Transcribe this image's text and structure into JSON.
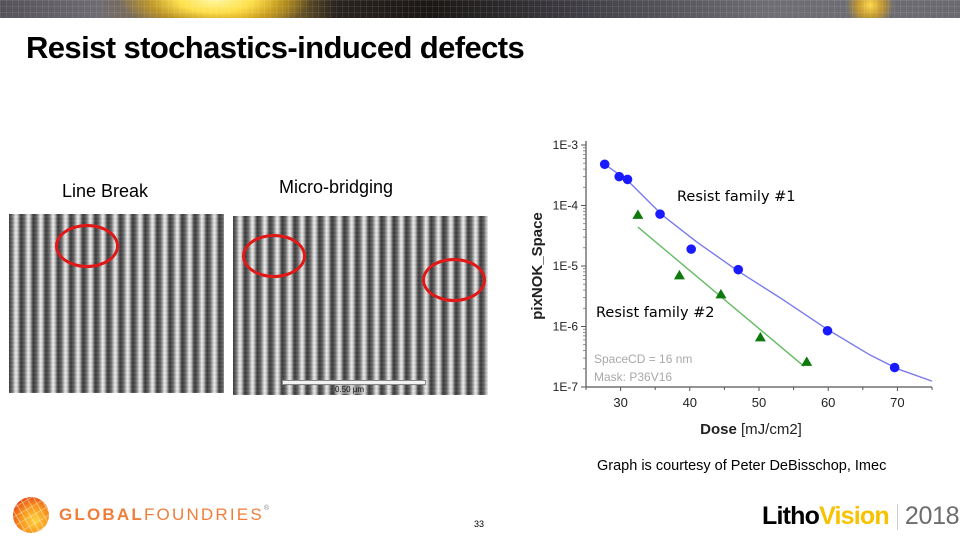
{
  "slide": {
    "title": "Resist stochastics-induced defects",
    "page_number": "33"
  },
  "images": {
    "left": {
      "label": "Line Break"
    },
    "right": {
      "label": "Micro-bridging",
      "scale_bar": "0.50 µm"
    }
  },
  "credit": "Graph is courtesy of Peter DeBisschop, Imec",
  "footer": {
    "company": {
      "bold": "GLOBAL",
      "light": "FOUNDRIES",
      "reg": "®"
    },
    "event": {
      "litho": "Litho",
      "vision": "Vision",
      "year": "2018"
    }
  },
  "colors": {
    "series1": "#1a1aff",
    "series1_fit": "#7a7af0",
    "series2": "#0e7a0e",
    "series2_fit": "#66bb66",
    "annotation": "#a8a8a8",
    "defect_circle": "#e01818",
    "brand_orange": "#f07e3a",
    "brand_yellow": "#f7c200"
  },
  "chart_data": {
    "type": "scatter",
    "title": "",
    "xlabel": "Dose",
    "xlabel_unit": "[mJ/cm2]",
    "ylabel": "pixNOK_Space",
    "yscale": "log",
    "xlim": [
      25,
      75
    ],
    "ylim": [
      1e-07,
      0.001
    ],
    "x_ticks": [
      "30",
      "40",
      "50",
      "60",
      "70"
    ],
    "y_ticks": [
      "1E-3",
      "1E-4",
      "1E-5",
      "1E-6",
      "1E-7"
    ],
    "grid": false,
    "annotations": [
      "SpaceCD = 16 nm",
      "Mask: P36V16"
    ],
    "series": [
      {
        "name": "Resist family #1",
        "marker": "circle",
        "x": [
          27.7,
          29.8,
          31.0,
          35.7,
          40.2,
          47.0,
          59.9,
          69.6
        ],
        "y": [
          0.00048,
          0.0003,
          0.00027,
          7.2e-05,
          1.9e-05,
          8.7e-06,
          8.5e-07,
          2.1e-07
        ],
        "fit": "curve"
      },
      {
        "name": "Resist family #2",
        "marker": "triangle",
        "x": [
          32.5,
          38.5,
          44.5,
          50.2,
          56.9
        ],
        "y": [
          7e-05,
          7e-06,
          3.4e-06,
          6.6e-07,
          2.6e-07
        ],
        "fit": "line"
      }
    ],
    "legend_labels": [
      "Resist family #1",
      "Resist family #2"
    ]
  }
}
